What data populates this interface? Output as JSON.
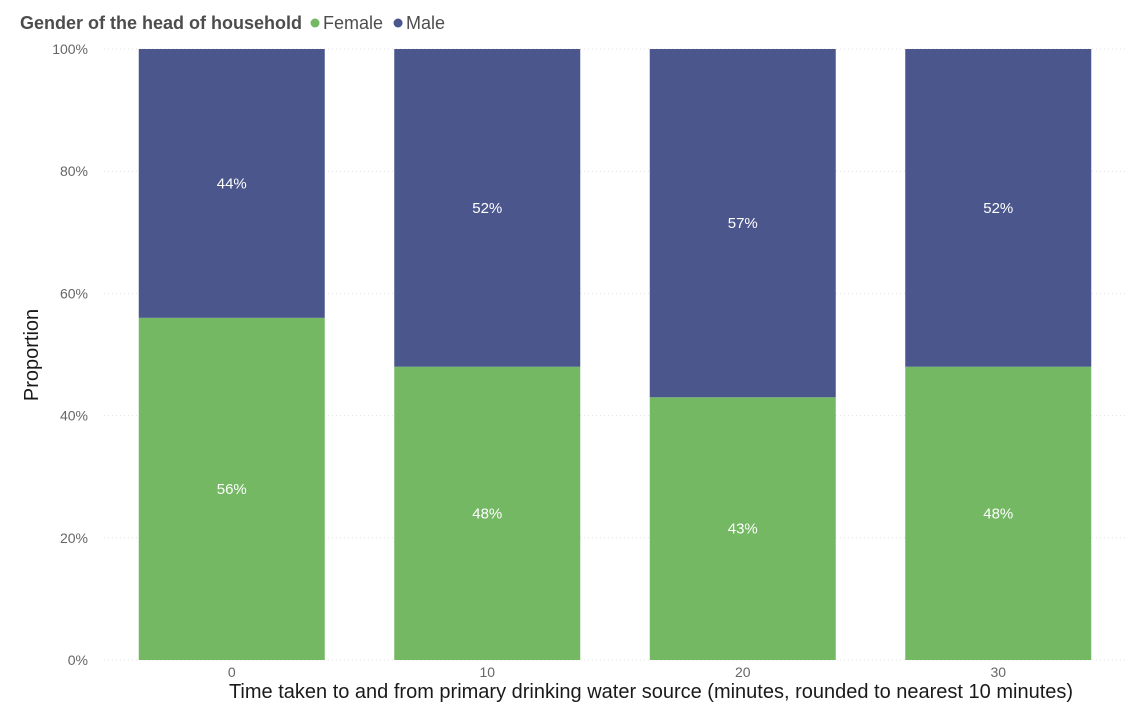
{
  "chart_data": {
    "type": "bar",
    "stacked": true,
    "percent_stacked": true,
    "legend": {
      "title": "Gender of the head of household",
      "position": "top-left"
    },
    "categories": [
      "0",
      "10",
      "20",
      "30"
    ],
    "series": [
      {
        "name": "Female",
        "color": "#74b863",
        "values": [
          56,
          48,
          43,
          48
        ],
        "labels": [
          "56%",
          "48%",
          "43%",
          "48%"
        ]
      },
      {
        "name": "Male",
        "color": "#4a568c",
        "values": [
          44,
          52,
          57,
          52
        ],
        "labels": [
          "44%",
          "52%",
          "57%",
          "52%"
        ]
      }
    ],
    "xlabel": "Time taken to and from primary drinking water source (minutes, rounded to nearest 10 minutes)",
    "ylabel": "Proportion",
    "ylim": [
      0,
      100
    ],
    "yticks": [
      "0%",
      "20%",
      "40%",
      "60%",
      "80%",
      "100%"
    ],
    "grid": true
  }
}
